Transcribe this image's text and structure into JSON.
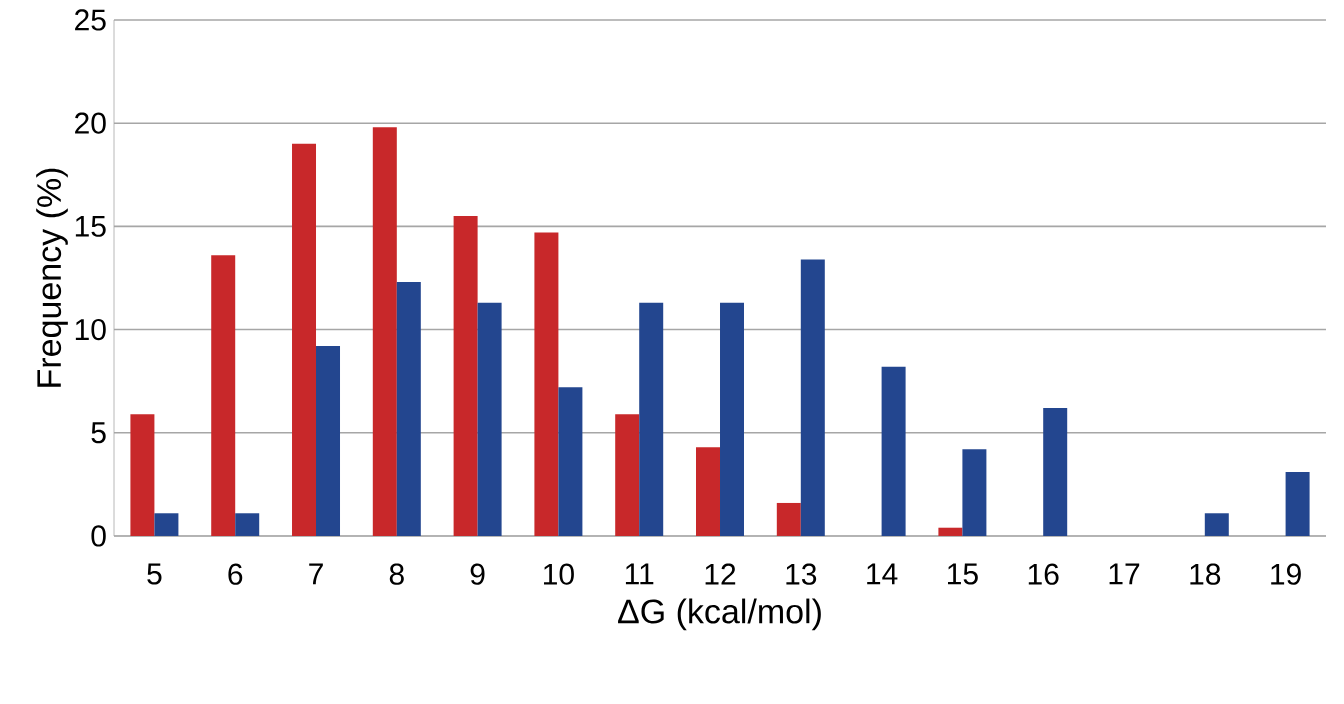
{
  "chart_data": {
    "type": "bar",
    "xlabel": "ΔG (kcal/mol)",
    "ylabel": "Frequency (%)",
    "categories": [
      "5",
      "6",
      "7",
      "8",
      "9",
      "10",
      "11",
      "12",
      "13",
      "14",
      "15",
      "16",
      "17",
      "18",
      "19"
    ],
    "series": [
      {
        "color": "#c8282a",
        "values": [
          5.9,
          13.6,
          19,
          19.8,
          15.5,
          14.7,
          5.9,
          4.3,
          1.6,
          0,
          0.4,
          0,
          0,
          0,
          0
        ]
      },
      {
        "color": "#23468f",
        "values": [
          1.1,
          1.1,
          9.2,
          12.3,
          11.3,
          7.2,
          11.3,
          11.3,
          13.4,
          8.2,
          4.2,
          6.2,
          0,
          1.1,
          3.1
        ]
      }
    ],
    "ylim": [
      0,
      25
    ],
    "yticks": [
      0,
      5,
      10,
      15,
      20,
      25
    ],
    "grid": "y"
  }
}
